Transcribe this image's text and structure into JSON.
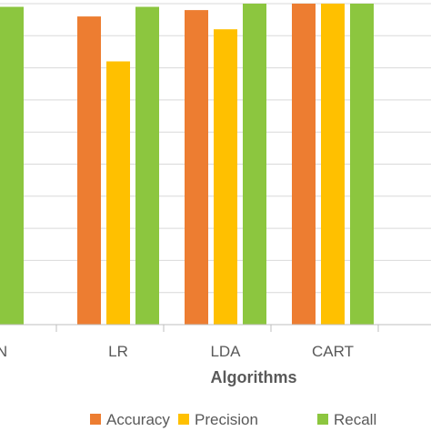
{
  "chart_data": {
    "type": "bar",
    "categories": [
      "N",
      "LR",
      "LDA",
      "CART"
    ],
    "series": [
      {
        "name": "Accuracy",
        "values": [
          null,
          0.96,
          0.98,
          1.0
        ]
      },
      {
        "name": "Precision",
        "values": [
          null,
          0.82,
          0.92,
          1.0
        ]
      },
      {
        "name": "Recall",
        "values": [
          0.99,
          0.99,
          1.0,
          1.0
        ]
      }
    ],
    "xlabel": "Algorithms",
    "ylim": [
      0.0,
      1.0
    ],
    "grid": true,
    "legend_position": "bottom",
    "colors": {
      "Accuracy": "#ED7D31",
      "Precision": "#FFC000",
      "Recall": "#8CC63F",
      "grid": "#D9D9D9",
      "axis": "#BFBFBF"
    }
  }
}
